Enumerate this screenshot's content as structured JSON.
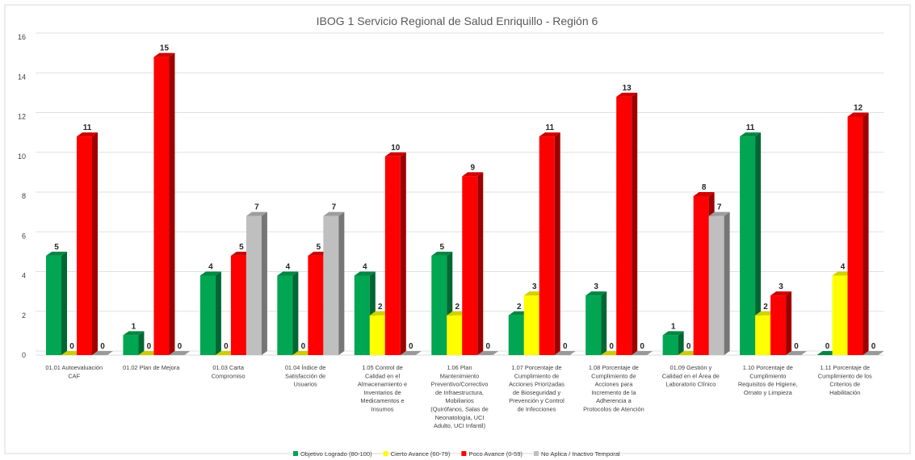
{
  "chart_data": {
    "type": "bar",
    "title": "IBOG 1 Servicio Regional de Salud Enriquillo - Región 6",
    "ylim": [
      0,
      16
    ],
    "yticks": [
      0,
      2,
      4,
      6,
      8,
      10,
      12,
      14,
      16
    ],
    "grid": true,
    "legend_position": "bottom",
    "categories": [
      [
        "01.01 Autoevaluación",
        "CAF"
      ],
      [
        "01.02 Plan de Mejora"
      ],
      [
        "01.03 Carta",
        "Compromiso"
      ],
      [
        "01.04 Índice de",
        "Satisfacción de",
        "Usuarios"
      ],
      [
        "1.05 Control de",
        "Calidad en el",
        "Almacenamiento e",
        "Inventarios de",
        "Medicamentos e",
        "Insumos"
      ],
      [
        "1.06 Plan",
        "Mantenimiento",
        "Preventivo/Correctivo",
        "de Infraestructura,",
        "Mobiliarios",
        "(Quirófanos, Salas de",
        "Neonatología, UCI",
        "Adulto, UCI Infantil)"
      ],
      [
        "1.07 Porcentaje de",
        "Cumplimiento de",
        "Acciones Priorizadas",
        "de Bioseguridad y",
        "Prevención y Control",
        "de Infecciones"
      ],
      [
        "1.08 Porcentaje de",
        "Cumplimiento de",
        "Acciones para",
        "Incremento de la",
        "Adherencia a",
        "Protocolos de Atención"
      ],
      [
        "01.09 Gestión y",
        "Calidad en el Área de",
        "Laboratorio Clínico"
      ],
      [
        "1.10 Porcentaje de",
        "Cumplimiento",
        "Requisitos de Higiene,",
        "Ornato y Limpieza"
      ],
      [
        "1.11 Porcentaje de",
        "Cumplimiento de los",
        "Criterios de",
        "Habilitación"
      ]
    ],
    "series": [
      {
        "name": "Objetivo Logrado (80-100)",
        "color": "#00a651",
        "values": [
          5,
          1,
          4,
          4,
          4,
          5,
          2,
          3,
          1,
          11,
          0
        ]
      },
      {
        "name": "Cierto Avance (60-79)",
        "color": "#ffff00",
        "values": [
          0,
          0,
          0,
          0,
          2,
          2,
          3,
          0,
          0,
          2,
          4
        ]
      },
      {
        "name": "Poco Avance (0-59)",
        "color": "#ff0000",
        "values": [
          11,
          15,
          5,
          5,
          10,
          9,
          11,
          13,
          8,
          3,
          12
        ]
      },
      {
        "name": "No Aplica / Inactivo Temporal",
        "color": "#bfbfbf",
        "values": [
          0,
          0,
          7,
          7,
          0,
          0,
          0,
          0,
          7,
          0,
          0
        ]
      }
    ]
  }
}
